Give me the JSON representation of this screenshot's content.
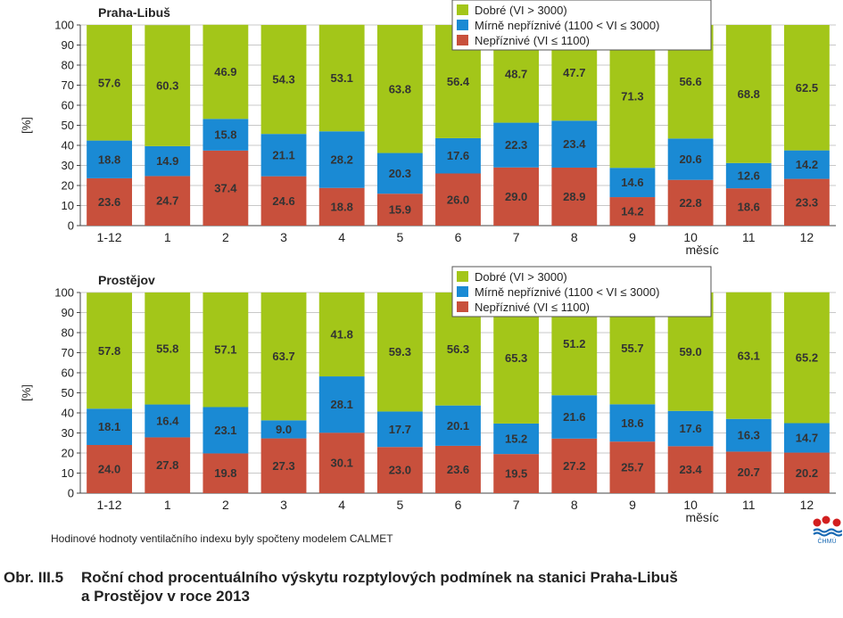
{
  "footnote": "Hodinové hodnoty ventilačního indexu byly spočteny modelem CALMET",
  "caption": {
    "number": "Obr. III.5",
    "line1": "Roční chod procentuálního výskytu rozptylových podmínek na stanici Praha-Libuš",
    "line2": "a Prostějov v roce 2013"
  },
  "logo_text": "ČHMÚ",
  "chart_data": [
    {
      "type": "bar",
      "stacked": true,
      "title": "Praha-Libuš",
      "ylabel": "[%]",
      "xlabel": "měsíc",
      "ylim": [
        0,
        100
      ],
      "yticks": [
        0,
        10,
        20,
        30,
        40,
        50,
        60,
        70,
        80,
        90,
        100
      ],
      "grid": true,
      "legend_position": "top-right",
      "categories": [
        "1-12",
        "1",
        "2",
        "3",
        "4",
        "5",
        "6",
        "7",
        "8",
        "9",
        "10",
        "11",
        "12"
      ],
      "series": [
        {
          "name": "Nepříznivé (VI ≤ 1100)",
          "color": "#c8503c",
          "values": [
            23.6,
            24.7,
            37.4,
            24.6,
            18.8,
            15.9,
            26.0,
            29.0,
            28.9,
            14.2,
            22.8,
            18.6,
            23.3
          ]
        },
        {
          "name": "Mírně nepříznivé (1100 < VI ≤ 3000)",
          "color": "#1a8ad4",
          "values": [
            18.8,
            14.9,
            15.8,
            21.1,
            28.2,
            20.3,
            17.6,
            22.3,
            23.4,
            14.6,
            20.6,
            12.6,
            14.2
          ]
        },
        {
          "name": "Dobré (VI > 3000)",
          "color": "#a3c619",
          "values": [
            57.6,
            60.3,
            46.9,
            54.3,
            53.1,
            63.8,
            56.4,
            48.7,
            47.7,
            71.3,
            56.6,
            68.8,
            62.5
          ]
        }
      ]
    },
    {
      "type": "bar",
      "stacked": true,
      "title": "Prostějov",
      "ylabel": "[%]",
      "xlabel": "měsíc",
      "ylim": [
        0,
        100
      ],
      "yticks": [
        0,
        10,
        20,
        30,
        40,
        50,
        60,
        70,
        80,
        90,
        100
      ],
      "grid": true,
      "legend_position": "top-right",
      "categories": [
        "1-12",
        "1",
        "2",
        "3",
        "4",
        "5",
        "6",
        "7",
        "8",
        "9",
        "10",
        "11",
        "12"
      ],
      "series": [
        {
          "name": "Nepříznivé (VI ≤ 1100)",
          "color": "#c8503c",
          "values": [
            24.0,
            27.8,
            19.8,
            27.3,
            30.1,
            23.0,
            23.6,
            19.5,
            27.2,
            25.7,
            23.4,
            20.7,
            20.2
          ]
        },
        {
          "name": "Mírně nepříznivé (1100 < VI ≤ 3000)",
          "color": "#1a8ad4",
          "values": [
            18.1,
            16.4,
            23.1,
            9.0,
            28.1,
            17.7,
            20.1,
            15.2,
            21.6,
            18.6,
            17.6,
            16.3,
            14.7
          ]
        },
        {
          "name": "Dobré (VI > 3000)",
          "color": "#a3c619",
          "values": [
            57.8,
            55.8,
            57.1,
            63.7,
            41.8,
            59.3,
            56.3,
            65.3,
            51.2,
            55.7,
            59.0,
            63.1,
            65.2
          ]
        }
      ]
    }
  ]
}
